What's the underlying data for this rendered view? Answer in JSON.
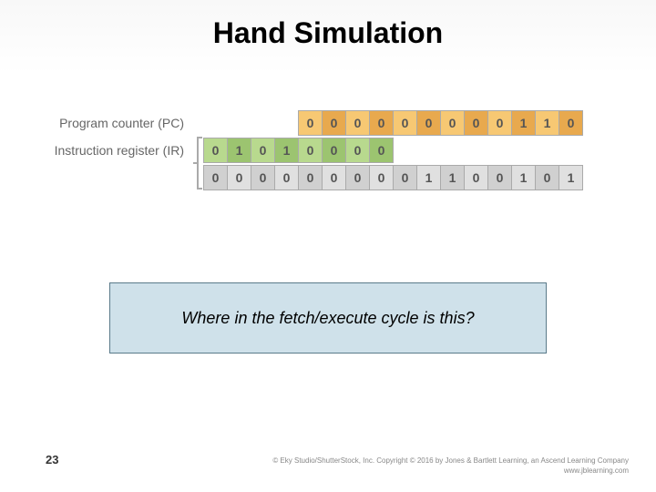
{
  "title": "Hand Simulation",
  "pc": {
    "label": "Program counter (PC)",
    "cells": [
      {
        "v": "0",
        "shade": "orange"
      },
      {
        "v": "0",
        "shade": "darkorange"
      },
      {
        "v": "0",
        "shade": "orange"
      },
      {
        "v": "0",
        "shade": "darkorange"
      },
      {
        "v": "0",
        "shade": "orange"
      },
      {
        "v": "0",
        "shade": "darkorange"
      },
      {
        "v": "0",
        "shade": "orange"
      },
      {
        "v": "0",
        "shade": "darkorange"
      },
      {
        "v": "0",
        "shade": "orange"
      },
      {
        "v": "1",
        "shade": "darkorange"
      },
      {
        "v": "1",
        "shade": "orange"
      },
      {
        "v": "0",
        "shade": "darkorange"
      }
    ]
  },
  "ir": {
    "label": "Instruction register (IR)",
    "row1": [
      {
        "v": "0",
        "shade": "green"
      },
      {
        "v": "1",
        "shade": "darkgreen"
      },
      {
        "v": "0",
        "shade": "green"
      },
      {
        "v": "1",
        "shade": "darkgreen"
      },
      {
        "v": "0",
        "shade": "green"
      },
      {
        "v": "0",
        "shade": "darkgreen"
      },
      {
        "v": "0",
        "shade": "green"
      },
      {
        "v": "0",
        "shade": "darkgreen"
      }
    ],
    "row2": [
      {
        "v": "0",
        "shade": "grey"
      },
      {
        "v": "0",
        "shade": "lightgrey"
      },
      {
        "v": "0",
        "shade": "grey"
      },
      {
        "v": "0",
        "shade": "lightgrey"
      },
      {
        "v": "0",
        "shade": "grey"
      },
      {
        "v": "0",
        "shade": "lightgrey"
      },
      {
        "v": "0",
        "shade": "grey"
      },
      {
        "v": "0",
        "shade": "lightgrey"
      },
      {
        "v": "0",
        "shade": "grey"
      },
      {
        "v": "1",
        "shade": "lightgrey"
      },
      {
        "v": "1",
        "shade": "grey"
      },
      {
        "v": "0",
        "shade": "lightgrey"
      },
      {
        "v": "0",
        "shade": "grey"
      },
      {
        "v": "1",
        "shade": "lightgrey"
      },
      {
        "v": "0",
        "shade": "grey"
      },
      {
        "v": "1",
        "shade": "lightgrey"
      }
    ]
  },
  "callout": "Where in the fetch/execute cycle is this?",
  "page_number": "23",
  "copyright_line1": "© Eky Studio/ShutterStock, Inc. Copyright © 2016 by Jones & Bartlett Learning, an Ascend Learning Company",
  "copyright_line2": "www.jblearning.com"
}
